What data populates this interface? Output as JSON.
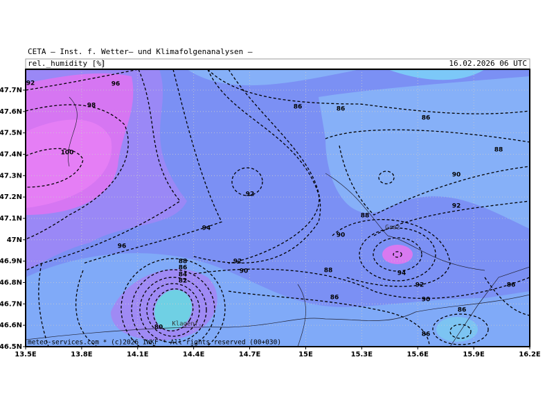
{
  "header": {
    "title": "CETA — Inst. f. Wetter— und Klimafolgenanalysen —",
    "field": "rel._humidity [%]",
    "datetime": "16.02.2026 06 UTC"
  },
  "axes": {
    "lat_ticks": [
      "47.7N",
      "47.6N",
      "47.5N",
      "47.4N",
      "47.3N",
      "47.2N",
      "47.1N",
      "47N",
      "46.9N",
      "46.8N",
      "46.7N",
      "46.6N",
      "46.5N"
    ],
    "lon_ticks": [
      "13.5E",
      "13.8E",
      "14.1E",
      "14.4E",
      "14.7E",
      "15E",
      "15.3E",
      "15.6E",
      "15.9E",
      "16.2E"
    ]
  },
  "contour_labels": [
    "92",
    "96",
    "98",
    "100",
    "86",
    "86",
    "86",
    "88",
    "90",
    "92",
    "92",
    "88",
    "94",
    "90",
    "96",
    "92",
    "90",
    "88",
    "94",
    "92",
    "88",
    "86",
    "84",
    "82",
    "86",
    "90",
    "86",
    "86",
    "86",
    "80"
  ],
  "places": [
    "Graz",
    "Klagenf."
  ],
  "credit": "meteo-services.com * (c)2026 IWKF * All rights reserved (00+030)"
}
